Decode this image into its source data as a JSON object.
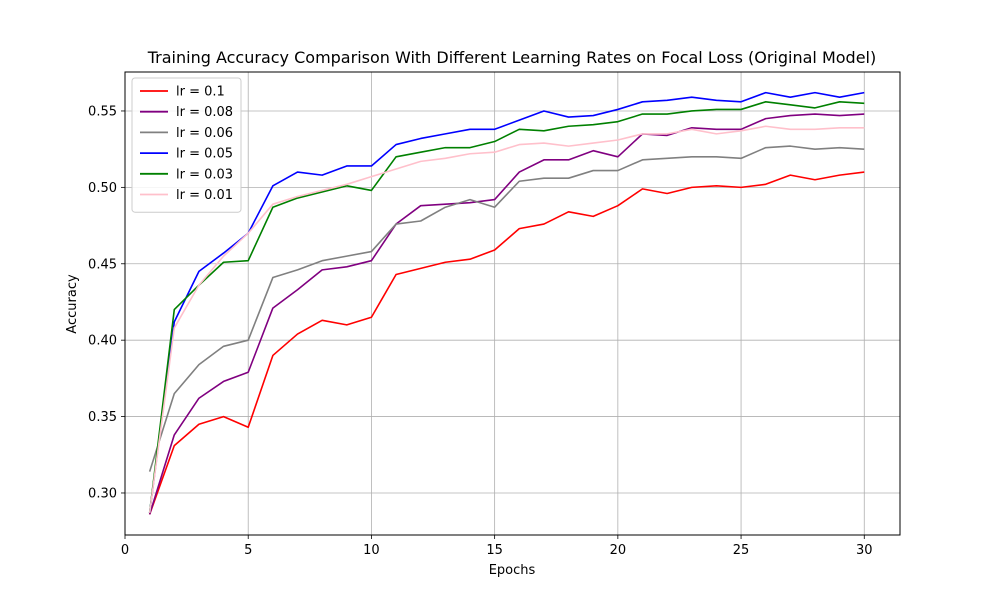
{
  "chart_data": {
    "type": "line",
    "title": "Training Accuracy Comparison With Different Learning Rates on Focal Loss (Original Model)",
    "xlabel": "Epochs",
    "ylabel": "Accuracy",
    "xlim": [
      0,
      31.45
    ],
    "ylim": [
      0.2725,
      0.5755
    ],
    "xticks": [
      0,
      5,
      10,
      15,
      20,
      25,
      30
    ],
    "xtick_labels": [
      "0",
      "5",
      "10",
      "15",
      "20",
      "25",
      "30"
    ],
    "yticks": [
      0.3,
      0.35,
      0.4,
      0.45,
      0.5,
      0.55
    ],
    "ytick_labels": [
      "0.30",
      "0.35",
      "0.40",
      "0.45",
      "0.50",
      "0.55"
    ],
    "grid": true,
    "legend_position": "top-left",
    "x": [
      1,
      2,
      3,
      4,
      5,
      6,
      7,
      8,
      9,
      10,
      11,
      12,
      13,
      14,
      15,
      16,
      17,
      18,
      19,
      20,
      21,
      22,
      23,
      24,
      25,
      26,
      27,
      28,
      29,
      30
    ],
    "series": [
      {
        "name": "lr = 0.1",
        "color": "#ff0000",
        "values": [
          0.286,
          0.331,
          0.345,
          0.35,
          0.343,
          0.39,
          0.404,
          0.413,
          0.41,
          0.415,
          0.443,
          0.447,
          0.451,
          0.453,
          0.459,
          0.473,
          0.476,
          0.484,
          0.481,
          0.488,
          0.499,
          0.496,
          0.5,
          0.501,
          0.5,
          0.502,
          0.508,
          0.505,
          0.508,
          0.51
        ]
      },
      {
        "name": "lr = 0.08",
        "color": "#800080",
        "values": [
          0.286,
          0.338,
          0.362,
          0.373,
          0.379,
          0.421,
          0.433,
          0.446,
          0.448,
          0.452,
          0.476,
          0.488,
          0.489,
          0.49,
          0.492,
          0.51,
          0.518,
          0.518,
          0.524,
          0.52,
          0.535,
          0.534,
          0.539,
          0.538,
          0.538,
          0.545,
          0.547,
          0.548,
          0.547,
          0.548
        ]
      },
      {
        "name": "lr = 0.06",
        "color": "#808080",
        "values": [
          0.314,
          0.365,
          0.384,
          0.396,
          0.4,
          0.441,
          0.446,
          0.452,
          0.455,
          0.458,
          0.476,
          0.478,
          0.487,
          0.492,
          0.487,
          0.504,
          0.506,
          0.506,
          0.511,
          0.511,
          0.518,
          0.519,
          0.52,
          0.52,
          0.519,
          0.526,
          0.527,
          0.525,
          0.526,
          0.525
        ]
      },
      {
        "name": "lr = 0.05",
        "color": "#0000ff",
        "values": [
          0.287,
          0.412,
          0.445,
          0.457,
          0.47,
          0.501,
          0.51,
          0.508,
          0.514,
          0.514,
          0.528,
          0.532,
          0.535,
          0.538,
          0.538,
          0.544,
          0.55,
          0.546,
          0.547,
          0.551,
          0.556,
          0.557,
          0.559,
          0.557,
          0.556,
          0.562,
          0.559,
          0.562,
          0.559,
          0.562
        ]
      },
      {
        "name": "lr = 0.03",
        "color": "#008000",
        "values": [
          0.287,
          0.42,
          0.436,
          0.451,
          0.452,
          0.487,
          0.493,
          0.497,
          0.501,
          0.498,
          0.52,
          0.523,
          0.526,
          0.526,
          0.53,
          0.538,
          0.537,
          0.54,
          0.541,
          0.543,
          0.548,
          0.548,
          0.55,
          0.551,
          0.551,
          0.556,
          0.554,
          0.552,
          0.556,
          0.555
        ]
      },
      {
        "name": "lr = 0.01",
        "color": "#ffc0cb",
        "values": [
          0.287,
          0.408,
          0.436,
          0.455,
          0.47,
          0.489,
          0.494,
          0.498,
          0.502,
          0.507,
          0.512,
          0.517,
          0.519,
          0.522,
          0.523,
          0.528,
          0.529,
          0.527,
          0.529,
          0.531,
          0.535,
          0.535,
          0.538,
          0.535,
          0.537,
          0.54,
          0.538,
          0.538,
          0.539,
          0.539
        ]
      }
    ]
  }
}
